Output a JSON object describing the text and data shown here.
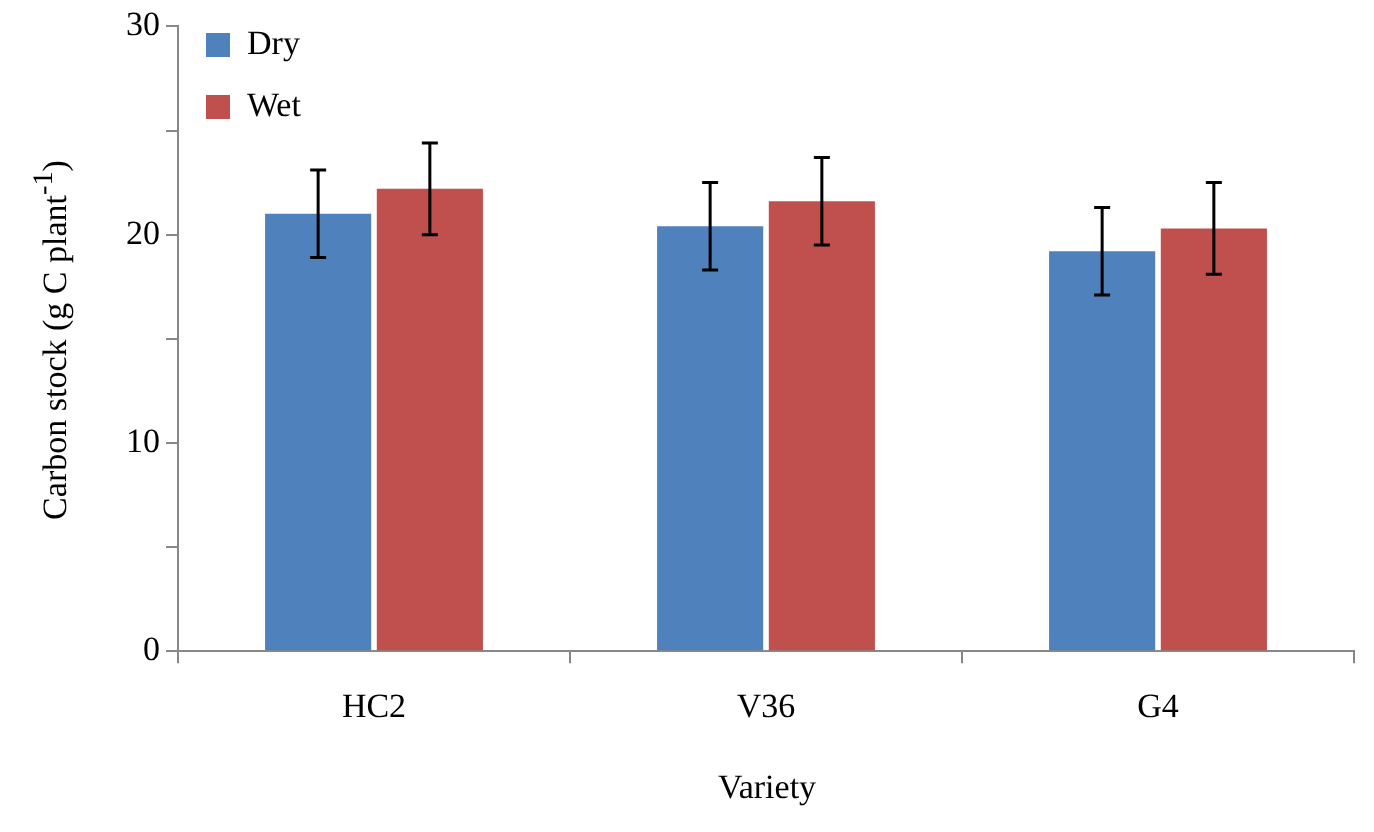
{
  "chart_data": {
    "type": "bar",
    "xlabel": "Variety",
    "ylabel": "Carbon stock (g C plant$^{-1}$)",
    "categories": [
      "HC2",
      "V36",
      "G4"
    ],
    "series": [
      {
        "name": "Dry",
        "color": "#4f81bd",
        "values": [
          21.0,
          20.4,
          19.2
        ],
        "errors": [
          2.1,
          2.1,
          2.1
        ]
      },
      {
        "name": "Wet",
        "color": "#c0504d",
        "values": [
          22.2,
          21.6,
          20.3
        ],
        "errors": [
          2.2,
          2.1,
          2.2
        ]
      }
    ],
    "ylim": [
      0,
      30
    ],
    "yticks": [
      0,
      {
        "value": 5,
        "label": null
      },
      10,
      {
        "value": 15,
        "label": null
      },
      20,
      {
        "value": 25,
        "label": null
      },
      30
    ],
    "grid": false,
    "legend": "top left"
  }
}
